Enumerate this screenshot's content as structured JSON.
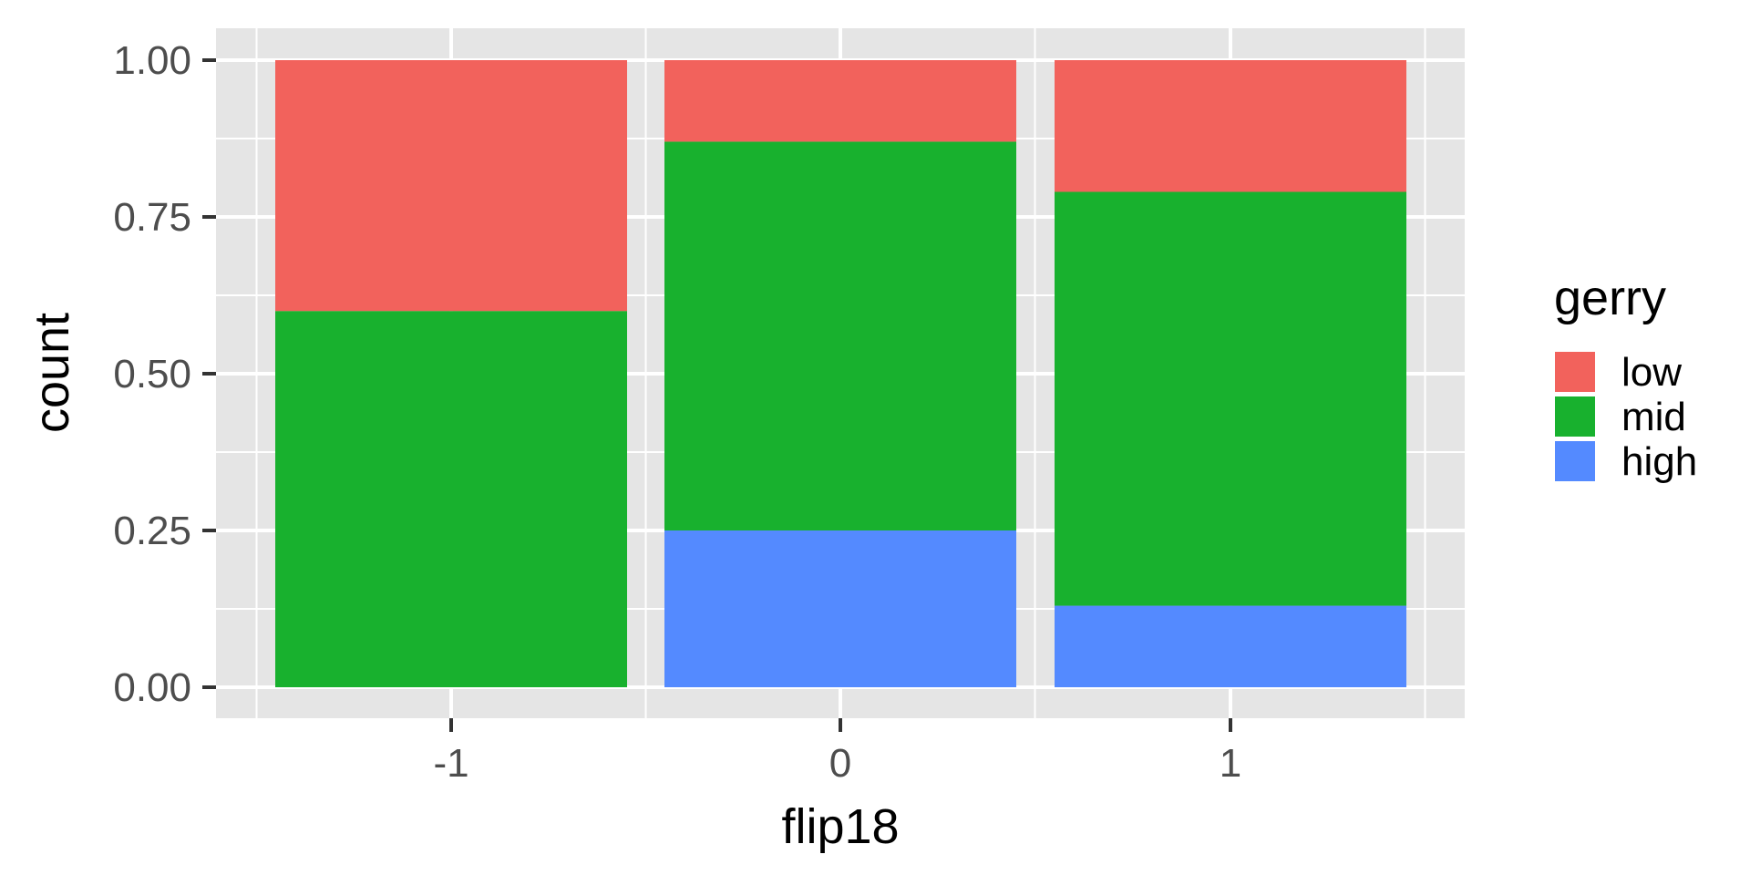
{
  "chart_data": {
    "type": "bar",
    "stacked": true,
    "position": "fill",
    "xlabel": "flip18",
    "ylabel": "count",
    "categories": [
      "-1",
      "0",
      "1"
    ],
    "ylim": [
      0,
      1
    ],
    "yticks": [
      "0.00",
      "0.25",
      "0.50",
      "0.75",
      "1.00"
    ],
    "ytick_values": [
      0,
      0.25,
      0.5,
      0.75,
      1.0
    ],
    "legend": {
      "title": "gerry",
      "position": "right"
    },
    "grid": true,
    "panel_background": "#e5e5e5",
    "series": [
      {
        "name": "high",
        "color": "#548aff",
        "values": [
          0.0,
          0.25,
          0.13
        ]
      },
      {
        "name": "mid",
        "color": "#18b12e",
        "values": [
          0.6,
          0.62,
          0.66
        ]
      },
      {
        "name": "low",
        "color": "#f2625c",
        "values": [
          0.4,
          0.13,
          0.21
        ]
      }
    ],
    "legend_order": [
      "low",
      "mid",
      "high"
    ]
  }
}
